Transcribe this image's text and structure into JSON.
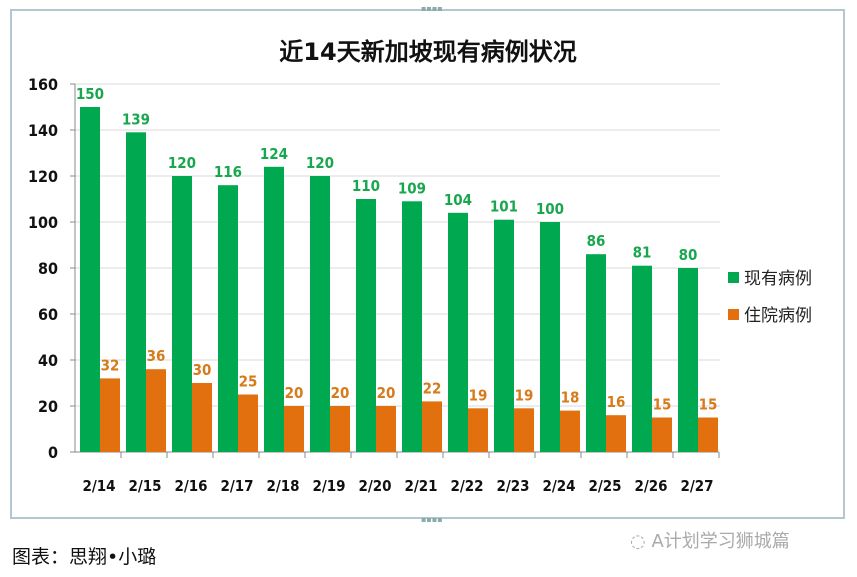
{
  "chart_data": {
    "type": "bar",
    "title": "近14天新加坡现有病例状况",
    "categories": [
      "2/14",
      "2/15",
      "2/16",
      "2/17",
      "2/18",
      "2/19",
      "2/20",
      "2/21",
      "2/22",
      "2/23",
      "2/24",
      "2/25",
      "2/26",
      "2/27"
    ],
    "series": [
      {
        "name": "现有病例",
        "color": "#00a94f",
        "label_color": "#1aa64f",
        "values": [
          150,
          139,
          120,
          116,
          124,
          120,
          110,
          109,
          104,
          101,
          100,
          86,
          81,
          80
        ]
      },
      {
        "name": "住院病例",
        "color": "#e2700f",
        "label_color": "#d77a1a",
        "values": [
          32,
          36,
          30,
          25,
          20,
          20,
          20,
          22,
          19,
          19,
          18,
          16,
          15,
          15
        ]
      }
    ],
    "ylim": [
      0,
      160
    ],
    "yticks": [
      0,
      20,
      40,
      60,
      80,
      100,
      120,
      140,
      160
    ],
    "grid": true,
    "legend": "right",
    "xlabel": "",
    "ylabel": ""
  },
  "caption": "图表：思翔•小璐",
  "watermark": "A计划学习狮城篇"
}
